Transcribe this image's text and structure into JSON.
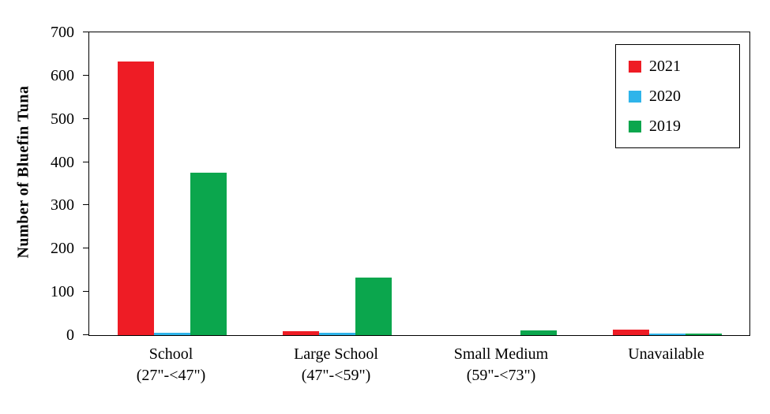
{
  "page": {
    "background": "#ffffff"
  },
  "chart_data": {
    "type": "bar",
    "title": "",
    "ylabel": "Number of Bluefin Tuna",
    "xlabel": "",
    "ylim": [
      0,
      700
    ],
    "yticks": [
      0,
      100,
      200,
      300,
      400,
      500,
      600,
      700
    ],
    "grid": false,
    "legend_position": "top-right-inside",
    "categories": [
      "School",
      "Large School",
      "Small Medium",
      "Unavailable"
    ],
    "category_sublabels": [
      "(27\"-<47\")",
      "(47\"-<59\")",
      "(59\"-<73\")",
      ""
    ],
    "series": [
      {
        "name": "2021",
        "color": "#ee1c25",
        "values": [
          632,
          10,
          0,
          13
        ]
      },
      {
        "name": "2020",
        "color": "#2fb4ea",
        "values": [
          6,
          6,
          0,
          4
        ]
      },
      {
        "name": "2019",
        "color": "#0ba64d",
        "values": [
          375,
          133,
          11,
          4
        ]
      }
    ]
  }
}
